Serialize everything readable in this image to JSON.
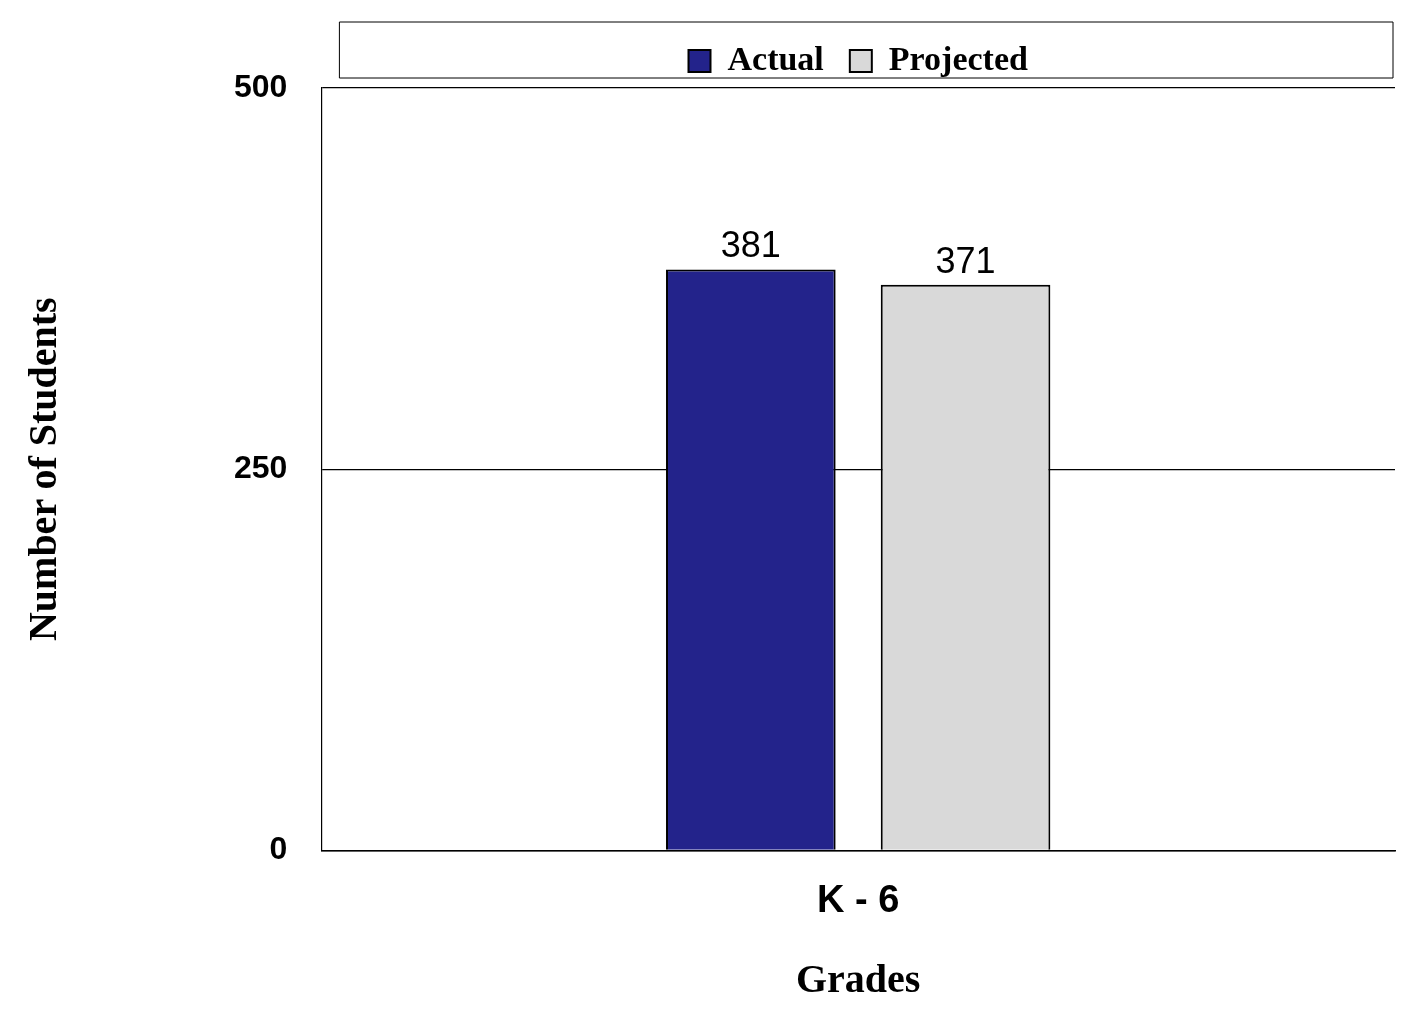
{
  "chart_data": {
    "type": "bar",
    "xlabel": "Grades",
    "ylabel": "Number of Students",
    "categories": [
      "K - 6"
    ],
    "series": [
      {
        "name": "Actual",
        "color": "#23238b",
        "values": [
          381
        ]
      },
      {
        "name": "Projected",
        "color": "#d9d9d9",
        "values": [
          371
        ]
      }
    ],
    "ylim": [
      0,
      500
    ],
    "yticks": [
      0,
      250,
      500
    ],
    "grid": "y",
    "legend": "top",
    "data_labels": true
  }
}
